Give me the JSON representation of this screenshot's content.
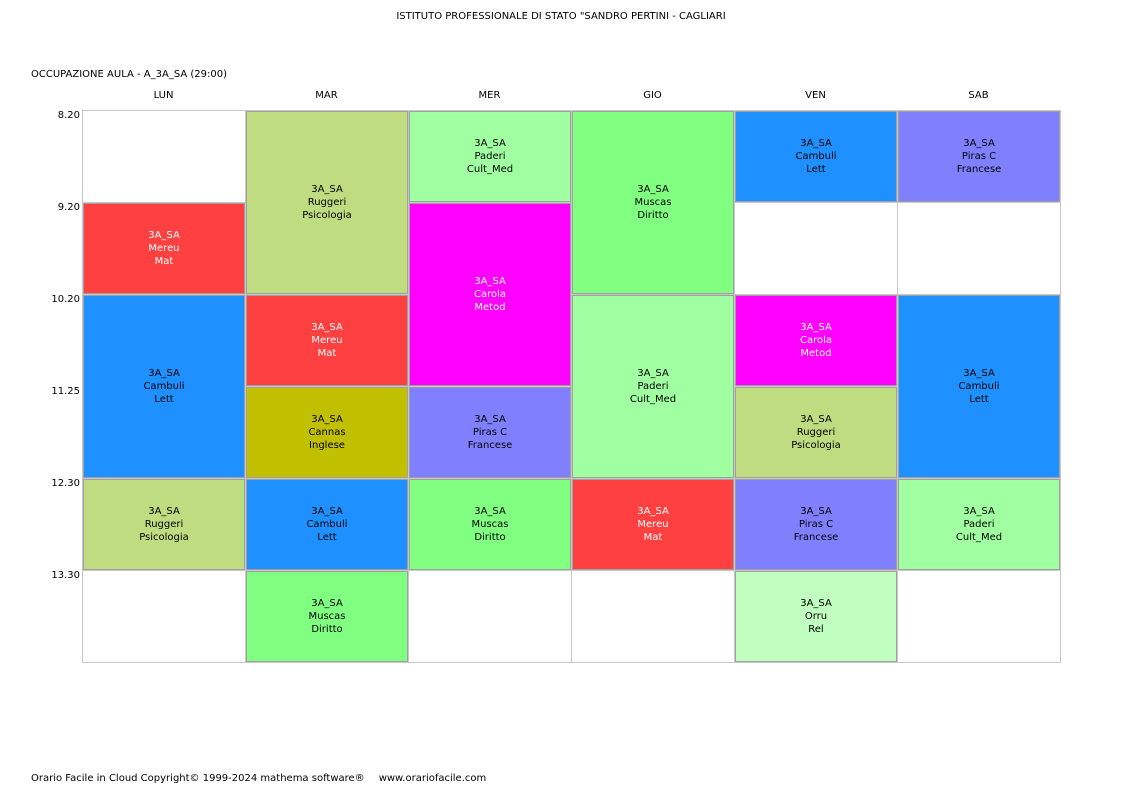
{
  "header": {
    "school": "ISTITUTO PROFESSIONALE DI STATO \"SANDRO PERTINI - CAGLIARI",
    "title": "OCCUPAZIONE AULA   -   A_3A_SA  (29:00)"
  },
  "days": [
    "LUN",
    "MAR",
    "MER",
    "GIO",
    "VEN",
    "SAB"
  ],
  "times": [
    "8.20",
    "9.20",
    "10.20",
    "11.25",
    "12.30",
    "13.30"
  ],
  "lessons": [
    {
      "day": 0,
      "start": 1,
      "span": 1,
      "lines": [
        "3A_SA",
        "Mereu",
        "Mat"
      ],
      "color": "#ff4040",
      "text_color": "#ffffff"
    },
    {
      "day": 0,
      "start": 2,
      "span": 2,
      "lines": [
        "3A_SA",
        "Cambuli",
        "Lett"
      ],
      "color": "#1e90ff",
      "text_color": "#000000"
    },
    {
      "day": 0,
      "start": 4,
      "span": 1,
      "lines": [
        "3A_SA",
        "Ruggeri",
        "Psicologia"
      ],
      "color": "#c0dc80",
      "text_color": "#000000"
    },
    {
      "day": 1,
      "start": 0,
      "span": 2,
      "lines": [
        "3A_SA",
        "Ruggeri",
        "Psicologia"
      ],
      "color": "#c0dc80",
      "text_color": "#000000"
    },
    {
      "day": 1,
      "start": 2,
      "span": 1,
      "lines": [
        "3A_SA",
        "Mereu",
        "Mat"
      ],
      "color": "#ff4040",
      "text_color": "#ffffff"
    },
    {
      "day": 1,
      "start": 3,
      "span": 1,
      "lines": [
        "3A_SA",
        "Cannas",
        "Inglese"
      ],
      "color": "#c0c000",
      "text_color": "#000000"
    },
    {
      "day": 1,
      "start": 4,
      "span": 1,
      "lines": [
        "3A_SA",
        "Cambuli",
        "Lett"
      ],
      "color": "#1e90ff",
      "text_color": "#000000"
    },
    {
      "day": 1,
      "start": 5,
      "span": 1,
      "lines": [
        "3A_SA",
        "Muscas",
        "Diritto"
      ],
      "color": "#80ff80",
      "text_color": "#000000"
    },
    {
      "day": 2,
      "start": 0,
      "span": 1,
      "lines": [
        "3A_SA",
        "Paderi",
        "Cult_Med"
      ],
      "color": "#a0ffa0",
      "text_color": "#000000"
    },
    {
      "day": 2,
      "start": 1,
      "span": 2,
      "lines": [
        "3A_SA",
        "Carola",
        "Metod"
      ],
      "color": "#ff00ff",
      "text_color": "#ffffff"
    },
    {
      "day": 2,
      "start": 3,
      "span": 1,
      "lines": [
        "3A_SA",
        "Piras C",
        "Francese"
      ],
      "color": "#8080ff",
      "text_color": "#000000"
    },
    {
      "day": 2,
      "start": 4,
      "span": 1,
      "lines": [
        "3A_SA",
        "Muscas",
        "Diritto"
      ],
      "color": "#80ff80",
      "text_color": "#000000"
    },
    {
      "day": 3,
      "start": 0,
      "span": 2,
      "lines": [
        "3A_SA",
        "Muscas",
        "Diritto"
      ],
      "color": "#80ff80",
      "text_color": "#000000"
    },
    {
      "day": 3,
      "start": 2,
      "span": 2,
      "lines": [
        "3A_SA",
        "Paderi",
        "Cult_Med"
      ],
      "color": "#a0ffa0",
      "text_color": "#000000"
    },
    {
      "day": 3,
      "start": 4,
      "span": 1,
      "lines": [
        "3A_SA",
        "Mereu",
        "Mat"
      ],
      "color": "#ff4040",
      "text_color": "#ffffff"
    },
    {
      "day": 4,
      "start": 0,
      "span": 1,
      "lines": [
        "3A_SA",
        "Cambuli",
        "Lett"
      ],
      "color": "#1e90ff",
      "text_color": "#000000"
    },
    {
      "day": 4,
      "start": 2,
      "span": 1,
      "lines": [
        "3A_SA",
        "Carola",
        "Metod"
      ],
      "color": "#ff00ff",
      "text_color": "#ffffff"
    },
    {
      "day": 4,
      "start": 3,
      "span": 1,
      "lines": [
        "3A_SA",
        "Ruggeri",
        "Psicologia"
      ],
      "color": "#c0dc80",
      "text_color": "#000000"
    },
    {
      "day": 4,
      "start": 4,
      "span": 1,
      "lines": [
        "3A_SA",
        "Piras C",
        "Francese"
      ],
      "color": "#8080ff",
      "text_color": "#000000"
    },
    {
      "day": 4,
      "start": 5,
      "span": 1,
      "lines": [
        "3A_SA",
        "Orru",
        "Rel"
      ],
      "color": "#c0ffc0",
      "text_color": "#000000"
    },
    {
      "day": 5,
      "start": 0,
      "span": 1,
      "lines": [
        "3A_SA",
        "Piras C",
        "Francese"
      ],
      "color": "#8080ff",
      "text_color": "#000000"
    },
    {
      "day": 5,
      "start": 2,
      "span": 2,
      "lines": [
        "3A_SA",
        "Cambuli",
        "Lett"
      ],
      "color": "#1e90ff",
      "text_color": "#000000"
    },
    {
      "day": 5,
      "start": 4,
      "span": 1,
      "lines": [
        "3A_SA",
        "Paderi",
        "Cult_Med"
      ],
      "color": "#a0ffa0",
      "text_color": "#000000"
    }
  ],
  "footer": {
    "copyright": "Orario Facile in Cloud  Copyright© 1999-2024 mathema software®",
    "website": "www.orariofacile.com"
  }
}
